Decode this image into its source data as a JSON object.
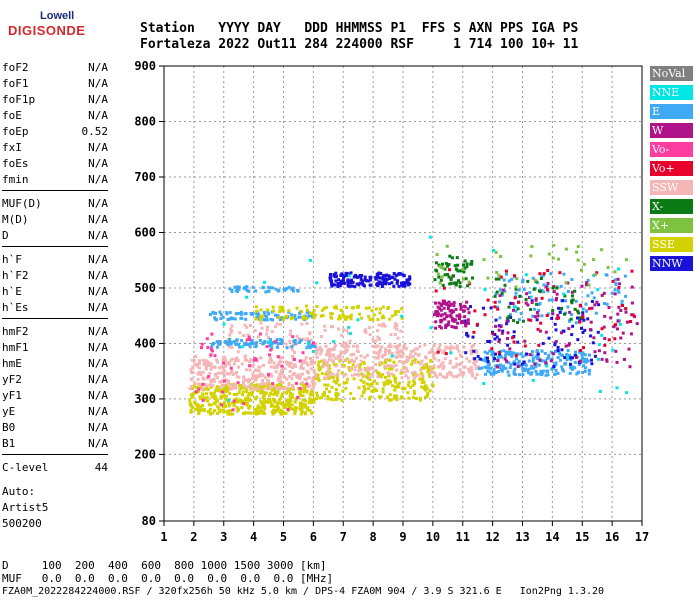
{
  "logo": {
    "top": "Lowell",
    "main": "DIGISONDE"
  },
  "header": {
    "line1": "Station   YYYY DAY   DDD HHMMSS P1  FFS S AXN PPS IGA PS",
    "line2": "Fortaleza 2022 Out11 284 224000 RSF     1 714 100 10+ 11"
  },
  "params": [
    {
      "name": "foF2",
      "value": "N/A"
    },
    {
      "name": "foF1",
      "value": "N/A"
    },
    {
      "name": "foF1p",
      "value": "N/A"
    },
    {
      "name": "foE",
      "value": "N/A"
    },
    {
      "name": "foEp",
      "value": "0.52"
    },
    {
      "name": "fxI",
      "value": "N/A"
    },
    {
      "name": "foEs",
      "value": "N/A"
    },
    {
      "name": "fmin",
      "value": "N/A"
    },
    {
      "name": "MUF(D)",
      "value": "N/A"
    },
    {
      "name": "M(D)",
      "value": "N/A"
    },
    {
      "name": "D",
      "value": "N/A"
    },
    {
      "name": "h`F",
      "value": "N/A"
    },
    {
      "name": "h`F2",
      "value": "N/A"
    },
    {
      "name": "h`E",
      "value": "N/A"
    },
    {
      "name": "h`Es",
      "value": "N/A"
    },
    {
      "name": "hmF2",
      "value": "N/A"
    },
    {
      "name": "hmF1",
      "value": "N/A"
    },
    {
      "name": "hmE",
      "value": "N/A"
    },
    {
      "name": "yF2",
      "value": "N/A"
    },
    {
      "name": "yF1",
      "value": "N/A"
    },
    {
      "name": "yE",
      "value": "N/A"
    },
    {
      "name": "B0",
      "value": "N/A"
    },
    {
      "name": "B1",
      "value": "N/A"
    },
    {
      "name": "C-level",
      "value": "44"
    }
  ],
  "autoscaling": {
    "label": "Auto:",
    "artist": "Artist5",
    "code": "500200"
  },
  "legend": [
    {
      "label": "NoVal",
      "color": "#808080",
      "text": "#ffffff"
    },
    {
      "label": "NNE",
      "color": "#00e6e6",
      "text": "#ffffff"
    },
    {
      "label": "E",
      "color": "#3fa9f5",
      "text": "#ffffff"
    },
    {
      "label": "W",
      "color": "#b0128a",
      "text": "#ffffff"
    },
    {
      "label": "Vo-",
      "color": "#ff3ca0",
      "text": "#ffffff"
    },
    {
      "label": "Vo+",
      "color": "#e6002a",
      "text": "#ffffff"
    },
    {
      "label": "SSW",
      "color": "#f4b6b6",
      "text": "#ffffff"
    },
    {
      "label": "X-",
      "color": "#0a7a14",
      "text": "#ffffff"
    },
    {
      "label": "X+",
      "color": "#7fc242",
      "text": "#ffffff"
    },
    {
      "label": "SSE",
      "color": "#d2d200",
      "text": "#ffffff"
    },
    {
      "label": "NNW",
      "color": "#1a12d8",
      "text": "#ffffff"
    }
  ],
  "footer": {
    "d_row": "D     100  200  400  600  800 1000 1500 3000 [km]",
    "muf_row": "MUF   0.0  0.0  0.0  0.0  0.0  0.0  0.0  0.0 [MHz]",
    "info": "FZA0M_2022284224000.RSF / 320fx256h 50 kHz 5.0 km / DPS-4 FZA0M 904 / 3.9 S 321.6 E   Ion2Png 1.3.20"
  },
  "chart_data": {
    "type": "scatter",
    "title": "",
    "xlabel": "",
    "ylabel": "",
    "xlim": [
      1,
      17
    ],
    "ylim": [
      80,
      900
    ],
    "x_ticks": [
      1,
      2,
      3,
      4,
      5,
      6,
      7,
      8,
      9,
      10,
      11,
      12,
      13,
      14,
      15,
      16,
      17
    ],
    "y_ticks": [
      80,
      200,
      300,
      400,
      500,
      600,
      700,
      800,
      900
    ],
    "grid": "dashed",
    "clusters": [
      {
        "series": "SSE",
        "x": [
          1.8,
          6.0
        ],
        "y": [
          275,
          330
        ],
        "n": 420
      },
      {
        "series": "SSE",
        "x": [
          6.0,
          10.0
        ],
        "y": [
          300,
          375
        ],
        "n": 260
      },
      {
        "series": "SSW",
        "x": [
          1.8,
          6.0
        ],
        "y": [
          320,
          380
        ],
        "n": 300
      },
      {
        "series": "SSW",
        "x": [
          6.0,
          11.5
        ],
        "y": [
          340,
          400
        ],
        "n": 280
      },
      {
        "series": "SSW",
        "x": [
          3.0,
          9.0
        ],
        "y": [
          380,
          440
        ],
        "n": 120
      },
      {
        "series": "E",
        "x": [
          2.5,
          6.0
        ],
        "y": [
          395,
          410
        ],
        "n": 80
      },
      {
        "series": "E",
        "x": [
          2.5,
          6.0
        ],
        "y": [
          445,
          460
        ],
        "n": 80
      },
      {
        "series": "E",
        "x": [
          3.0,
          5.5
        ],
        "y": [
          495,
          505
        ],
        "n": 40
      },
      {
        "series": "E",
        "x": [
          11.5,
          15.2
        ],
        "y": [
          345,
          390
        ],
        "n": 220
      },
      {
        "series": "E",
        "x": [
          12.0,
          16.5
        ],
        "y": [
          440,
          530
        ],
        "n": 90
      },
      {
        "series": "NNW",
        "x": [
          6.5,
          9.2
        ],
        "y": [
          505,
          530
        ],
        "n": 160
      },
      {
        "series": "NNW",
        "x": [
          11.0,
          15.5
        ],
        "y": [
          360,
          480
        ],
        "n": 90
      },
      {
        "series": "W",
        "x": [
          10.0,
          11.2
        ],
        "y": [
          430,
          480
        ],
        "n": 90
      },
      {
        "series": "W",
        "x": [
          12.0,
          16.8
        ],
        "y": [
          360,
          520
        ],
        "n": 110
      },
      {
        "series": "Vo-",
        "x": [
          2.0,
          6.0
        ],
        "y": [
          280,
          420
        ],
        "n": 50
      },
      {
        "series": "Vo+",
        "x": [
          10.0,
          16.8
        ],
        "y": [
          380,
          540
        ],
        "n": 60
      },
      {
        "series": "X-",
        "x": [
          10.0,
          11.3
        ],
        "y": [
          505,
          560
        ],
        "n": 50
      },
      {
        "series": "X-",
        "x": [
          12.0,
          15.0
        ],
        "y": [
          440,
          520
        ],
        "n": 40
      },
      {
        "series": "X+",
        "x": [
          10.0,
          16.5
        ],
        "y": [
          500,
          580
        ],
        "n": 40
      },
      {
        "series": "SSE",
        "x": [
          4.0,
          9.0
        ],
        "y": [
          445,
          470
        ],
        "n": 100
      },
      {
        "series": "NNE",
        "x": [
          2.0,
          16.5
        ],
        "y": [
          300,
          600
        ],
        "n": 40
      }
    ]
  }
}
